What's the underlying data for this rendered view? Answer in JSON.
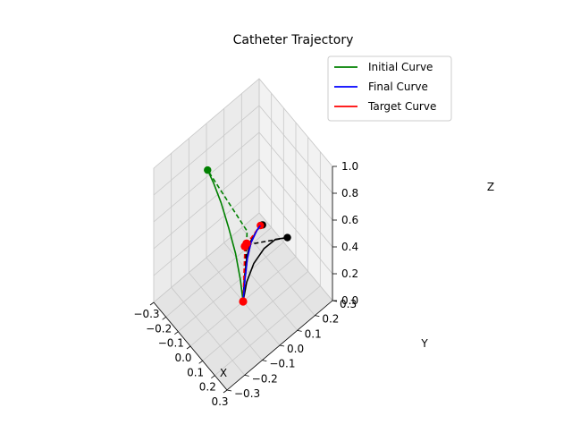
{
  "chart_data": {
    "type": "line",
    "projection": "3d",
    "title": "Catheter Trajectory",
    "xlabel": "X",
    "ylabel": "Y",
    "zlabel": "Z",
    "xlim": [
      -0.3,
      0.3
    ],
    "ylim": [
      -0.3,
      0.3
    ],
    "zlim": [
      0.0,
      1.0
    ],
    "x_ticks": [
      "−0.3",
      "−0.2",
      "−0.1",
      "0.0",
      "0.1",
      "0.2",
      "0.3"
    ],
    "y_ticks": [
      "−0.3",
      "−0.2",
      "−0.1",
      "0.0",
      "0.1",
      "0.2",
      "0.3"
    ],
    "z_ticks": [
      "0.0",
      "0.2",
      "0.4",
      "0.6",
      "0.8",
      "1.0"
    ],
    "grid": true,
    "legend_position": "top-right",
    "legend": [
      {
        "label": "Initial Curve",
        "color": "#008000"
      },
      {
        "label": "Final Curve",
        "color": "#0000ff"
      },
      {
        "label": "Target Curve",
        "color": "#ff0000"
      }
    ],
    "series": [
      {
        "name": "Initial Curve",
        "color": "#008000",
        "style": "solid",
        "points": [
          [
            0.0,
            0.0,
            0.0
          ],
          [
            -0.015,
            -0.005,
            0.15
          ],
          [
            -0.04,
            -0.015,
            0.33
          ],
          [
            -0.075,
            -0.03,
            0.5
          ],
          [
            -0.115,
            -0.045,
            0.66
          ],
          [
            -0.155,
            -0.06,
            0.78
          ],
          [
            -0.19,
            -0.07,
            0.85
          ]
        ],
        "end_marker": [
          -0.19,
          -0.07,
          0.85
        ]
      },
      {
        "name": "initial-control-polygon",
        "color": "#008000",
        "style": "dashed",
        "points": [
          [
            0.0,
            0.0,
            0.0
          ],
          [
            -0.01,
            0.03,
            0.48
          ],
          [
            -0.19,
            -0.07,
            0.85
          ]
        ]
      },
      {
        "name": "path-1",
        "color": "#000000",
        "style": "solid",
        "points": [
          [
            0.0,
            0.0,
            0.0
          ],
          [
            0.015,
            0.01,
            0.15
          ],
          [
            0.045,
            0.03,
            0.3
          ],
          [
            0.085,
            0.06,
            0.42
          ],
          [
            0.135,
            0.09,
            0.51
          ],
          [
            0.19,
            0.12,
            0.55
          ]
        ],
        "end_marker": [
          0.19,
          0.12,
          0.55
        ]
      },
      {
        "name": "path-1-control-polygon",
        "color": "#000000",
        "style": "dashed",
        "points": [
          [
            0.0,
            0.0,
            0.0
          ],
          [
            0.0,
            0.02,
            0.4
          ],
          [
            0.19,
            0.12,
            0.55
          ]
        ]
      },
      {
        "name": "path-2",
        "color": "#000000",
        "style": "solid",
        "points": [
          [
            0.0,
            0.0,
            0.0
          ],
          [
            0.01,
            0.0,
            0.18
          ],
          [
            0.03,
            0.0,
            0.36
          ],
          [
            0.06,
            0.0,
            0.51
          ],
          [
            0.1,
            0.01,
            0.63
          ],
          [
            0.13,
            0.02,
            0.69
          ]
        ],
        "end_marker": [
          0.13,
          0.02,
          0.69
        ]
      },
      {
        "name": "Target Curve",
        "color": "#ff0000",
        "style": "solid",
        "points": [
          [
            0.0,
            0.0,
            0.0
          ],
          [
            0.015,
            0.0,
            0.18
          ],
          [
            0.035,
            0.0,
            0.36
          ],
          [
            0.065,
            0.0,
            0.51
          ],
          [
            0.1,
            0.01,
            0.63
          ],
          [
            0.12,
            0.015,
            0.68
          ]
        ],
        "end_marker": [
          0.12,
          0.015,
          0.68
        ]
      },
      {
        "name": "target-control-polygon",
        "color": "#ff0000",
        "style": "dashed",
        "points": [
          [
            0.0,
            0.0,
            0.0
          ],
          [
            0.0,
            0.01,
            0.4
          ],
          [
            0.12,
            0.015,
            0.68
          ]
        ]
      },
      {
        "name": "Final Curve",
        "color": "#0000ff",
        "style": "solid",
        "points": [
          [
            0.0,
            0.0,
            0.0
          ],
          [
            0.015,
            0.0,
            0.18
          ],
          [
            0.035,
            0.0,
            0.36
          ],
          [
            0.065,
            0.0,
            0.51
          ],
          [
            0.1,
            0.01,
            0.63
          ],
          [
            0.12,
            0.015,
            0.68
          ]
        ]
      }
    ],
    "markers": [
      {
        "name": "base-point",
        "color": "#ff0000",
        "point": [
          0.0,
          0.0,
          0.0
        ]
      },
      {
        "name": "mid-control-point",
        "color": "#ff0000",
        "point": [
          0.0,
          0.01,
          0.4
        ]
      },
      {
        "name": "mid-control-point-2",
        "color": "#ff0000",
        "point": [
          0.0,
          0.02,
          0.41
        ]
      }
    ]
  }
}
